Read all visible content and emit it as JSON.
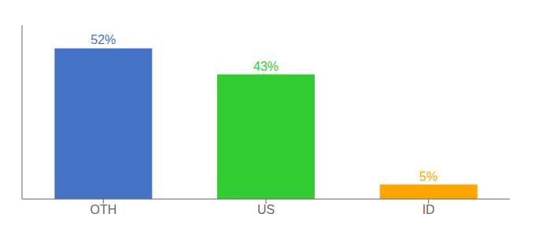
{
  "chart_data": {
    "type": "bar",
    "categories": [
      "OTH",
      "US",
      "ID"
    ],
    "values": [
      52,
      43,
      5
    ],
    "value_labels": [
      "52%",
      "43%",
      "5%"
    ],
    "colors": [
      "#4472C4",
      "#33CC33",
      "#FFA500"
    ],
    "ylim": [
      0,
      60
    ],
    "data_labels": true,
    "tick_labels": "x",
    "grid": false
  }
}
